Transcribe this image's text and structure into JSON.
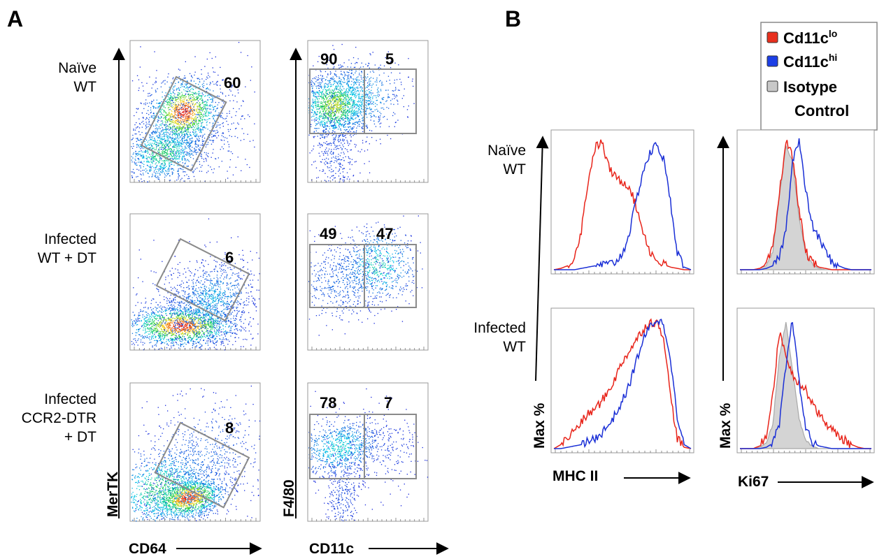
{
  "panels": {
    "a_letter": "A",
    "b_letter": "B"
  },
  "panel_a": {
    "row_labels": [
      [
        "Naïve",
        "WT"
      ],
      [
        "Infected",
        "WT + DT"
      ],
      [
        "Infected",
        "CCR2-DTR",
        "+ DT"
      ]
    ],
    "left_plot": {
      "xlabel": "CD64",
      "ylabel": "MerTK",
      "gate_values": [
        "60",
        "6",
        "8"
      ]
    },
    "right_plot": {
      "xlabel": "CD11c",
      "ylabel": "F4/80",
      "gate_values": [
        [
          "90",
          "5"
        ],
        [
          "49",
          "47"
        ],
        [
          "78",
          "7"
        ]
      ]
    }
  },
  "panel_b": {
    "row_labels": [
      [
        "Naïve",
        "WT"
      ],
      [
        "Infected",
        "WT"
      ]
    ],
    "ylabel": "Max %",
    "xlabels": [
      "MHC II",
      "Ki67"
    ],
    "legend": [
      {
        "base": "Cd11c",
        "sup": "lo",
        "color": "#e8301e"
      },
      {
        "base": "Cd11c",
        "sup": "hi",
        "color": "#1c3fe6"
      },
      {
        "base": "Isotype",
        "sup": "",
        "line2": "Control",
        "color": "#c8c8c8"
      }
    ],
    "colors": {
      "lo_line": "#e8241a",
      "hi_line": "#1a2fd6",
      "isotype_fill": "#d4d4d4",
      "isotype_line": "#a8a8a8"
    }
  },
  "chart_data": [
    {
      "type": "histogram",
      "title": "",
      "xlabel": "MHC II",
      "ylabel": "Max %",
      "row": "Naïve WT",
      "series": [
        {
          "name": "Cd11clo",
          "x": [
            0,
            5,
            10,
            15,
            20,
            25,
            30,
            35,
            40,
            45,
            50,
            55,
            60,
            65,
            70,
            75,
            80,
            85,
            90,
            95,
            100
          ],
          "values": [
            0,
            1,
            3,
            10,
            30,
            68,
            93,
            97,
            78,
            70,
            67,
            64,
            48,
            30,
            14,
            7,
            4,
            2,
            1,
            0,
            0
          ]
        },
        {
          "name": "Cd11chi",
          "x": [
            0,
            5,
            10,
            15,
            20,
            25,
            30,
            35,
            40,
            45,
            50,
            55,
            60,
            65,
            70,
            75,
            80,
            85,
            90,
            95,
            100
          ],
          "values": [
            0,
            0,
            0,
            0,
            1,
            2,
            3,
            4,
            4,
            6,
            12,
            28,
            52,
            75,
            88,
            96,
            84,
            52,
            14,
            2,
            0
          ]
        }
      ]
    },
    {
      "type": "histogram",
      "title": "",
      "xlabel": "Ki67",
      "ylabel": "Max %",
      "row": "Naïve WT",
      "series": [
        {
          "name": "Isotype Control",
          "x": [
            0,
            5,
            10,
            15,
            20,
            25,
            30,
            35,
            40,
            45,
            50,
            55,
            60,
            65,
            70,
            75,
            80,
            85,
            90,
            95,
            100
          ],
          "values": [
            0,
            0,
            0,
            1,
            3,
            14,
            55,
            95,
            82,
            40,
            12,
            4,
            1,
            0,
            0,
            0,
            0,
            0,
            0,
            0,
            0
          ]
        },
        {
          "name": "Cd11clo",
          "x": [
            0,
            5,
            10,
            15,
            20,
            25,
            30,
            35,
            40,
            45,
            50,
            55,
            60,
            65,
            70,
            75,
            80,
            85,
            90,
            95,
            100
          ],
          "values": [
            0,
            0,
            0,
            1,
            4,
            16,
            58,
            98,
            86,
            46,
            14,
            5,
            2,
            1,
            0,
            0,
            0,
            0,
            0,
            0,
            0
          ]
        },
        {
          "name": "Cd11chi",
          "x": [
            0,
            5,
            10,
            15,
            20,
            25,
            30,
            35,
            40,
            45,
            50,
            55,
            60,
            65,
            70,
            75,
            80,
            85,
            90,
            95,
            100
          ],
          "values": [
            0,
            0,
            0,
            0,
            1,
            3,
            10,
            30,
            84,
            98,
            60,
            34,
            24,
            14,
            6,
            3,
            1,
            0,
            0,
            0,
            0
          ]
        }
      ]
    },
    {
      "type": "histogram",
      "title": "",
      "xlabel": "MHC II",
      "ylabel": "Max %",
      "row": "Infected WT",
      "series": [
        {
          "name": "Cd11clo",
          "x": [
            0,
            5,
            10,
            15,
            20,
            25,
            30,
            35,
            40,
            45,
            50,
            55,
            60,
            65,
            70,
            75,
            80,
            85,
            90,
            95,
            100
          ],
          "values": [
            0,
            3,
            8,
            14,
            20,
            26,
            30,
            36,
            44,
            54,
            66,
            74,
            82,
            90,
            96,
            95,
            86,
            40,
            8,
            1,
            0
          ]
        },
        {
          "name": "Cd11chi",
          "x": [
            0,
            5,
            10,
            15,
            20,
            25,
            30,
            35,
            40,
            45,
            50,
            55,
            60,
            65,
            70,
            75,
            80,
            85,
            90,
            95,
            100
          ],
          "values": [
            0,
            0,
            1,
            2,
            3,
            5,
            8,
            12,
            18,
            26,
            36,
            48,
            66,
            82,
            92,
            98,
            94,
            70,
            22,
            3,
            0
          ]
        }
      ]
    },
    {
      "type": "histogram",
      "title": "",
      "xlabel": "Ki67",
      "ylabel": "Max %",
      "row": "Infected WT",
      "series": [
        {
          "name": "Isotype Control",
          "x": [
            0,
            5,
            10,
            15,
            20,
            25,
            30,
            35,
            40,
            45,
            50,
            55,
            60,
            65,
            70,
            75,
            80,
            85,
            90,
            95,
            100
          ],
          "values": [
            0,
            0,
            0,
            1,
            4,
            18,
            70,
            96,
            60,
            22,
            6,
            2,
            0,
            0,
            0,
            0,
            0,
            0,
            0,
            0,
            0
          ]
        },
        {
          "name": "Cd11clo",
          "x": [
            0,
            5,
            10,
            15,
            20,
            25,
            30,
            35,
            40,
            45,
            50,
            55,
            60,
            65,
            70,
            75,
            80,
            85,
            90,
            95,
            100
          ],
          "values": [
            0,
            0,
            0,
            2,
            10,
            42,
            88,
            72,
            56,
            50,
            44,
            36,
            26,
            20,
            14,
            10,
            6,
            3,
            1,
            0,
            0
          ]
        },
        {
          "name": "Cd11chi",
          "x": [
            0,
            5,
            10,
            15,
            20,
            25,
            30,
            35,
            40,
            45,
            50,
            55,
            60,
            65,
            70,
            75,
            80,
            85,
            90,
            95,
            100
          ],
          "values": [
            0,
            0,
            0,
            0,
            1,
            4,
            18,
            62,
            98,
            50,
            16,
            5,
            2,
            1,
            0,
            0,
            0,
            0,
            0,
            0,
            0
          ]
        }
      ]
    }
  ]
}
